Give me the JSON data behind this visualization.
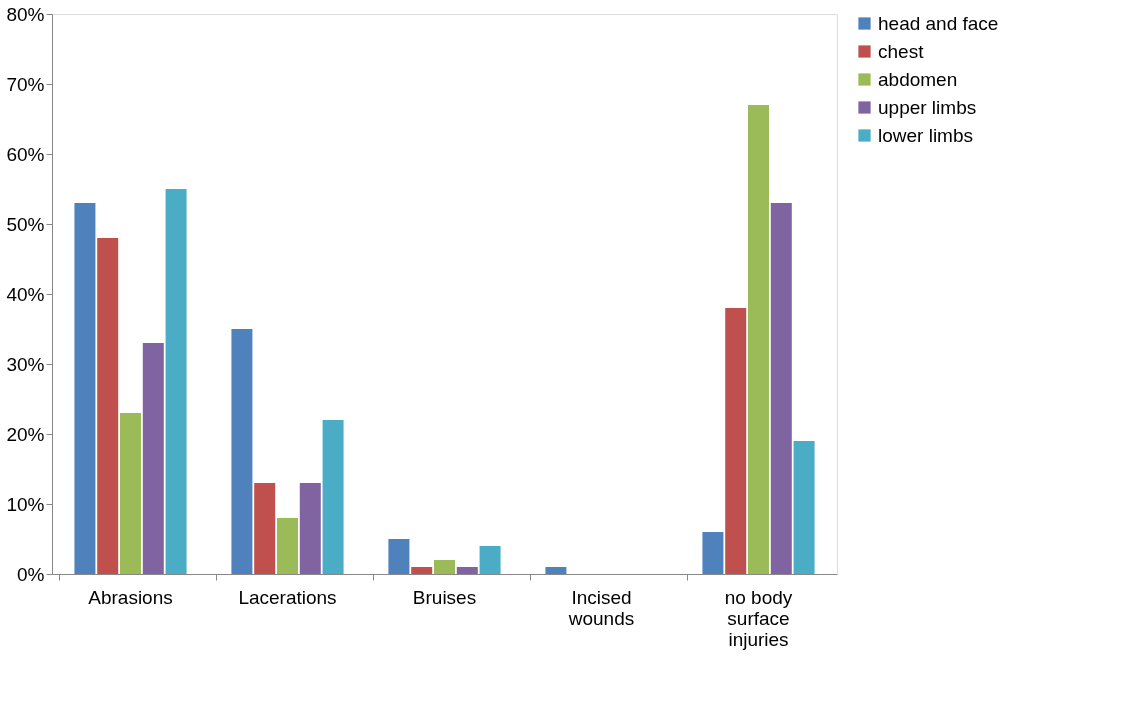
{
  "chart_data": {
    "type": "bar",
    "categories": [
      "Abrasions",
      "Lacerations",
      "Bruises",
      "Incised wounds",
      "no body surface injuries"
    ],
    "series": [
      {
        "name": "head and face",
        "color": "#4f81bd",
        "values": [
          53,
          35,
          5,
          1,
          6
        ]
      },
      {
        "name": "chest",
        "color": "#c0504d",
        "values": [
          48,
          13,
          1,
          0,
          38
        ]
      },
      {
        "name": "abdomen",
        "color": "#9bbb59",
        "values": [
          23,
          8,
          2,
          0,
          67
        ]
      },
      {
        "name": "upper  limbs",
        "color": "#8064a2",
        "values": [
          33,
          13,
          1,
          0,
          53
        ]
      },
      {
        "name": "lower limbs",
        "color": "#4bacc6",
        "values": [
          55,
          22,
          4,
          0,
          19
        ]
      }
    ],
    "ylim": [
      0,
      80
    ],
    "yticks": [
      {
        "value": 0,
        "label": "0%"
      },
      {
        "value": 10,
        "label": "10%"
      },
      {
        "value": 20,
        "label": "20%"
      },
      {
        "value": 30,
        "label": "30%"
      },
      {
        "value": 40,
        "label": "40%"
      },
      {
        "value": 50,
        "label": "50%"
      },
      {
        "value": 60,
        "label": "60%"
      },
      {
        "value": 70,
        "label": "70%"
      },
      {
        "value": 80,
        "label": "80%"
      }
    ],
    "grid": false,
    "legend": "right"
  }
}
